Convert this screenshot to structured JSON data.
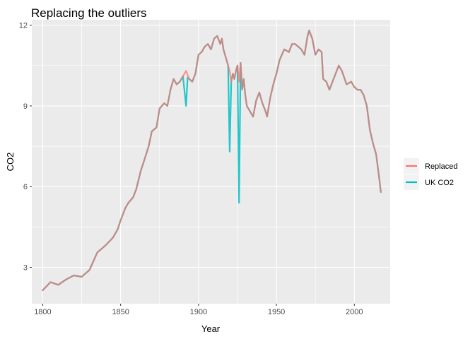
{
  "chart_data": {
    "type": "line",
    "title": "Replacing the outliers",
    "xlabel": "Year",
    "ylabel": "CO2",
    "xlim": [
      1793,
      2023
    ],
    "ylim": [
      1.65,
      12.2
    ],
    "x_ticks": [
      1800,
      1850,
      1900,
      1950,
      2000
    ],
    "y_ticks": [
      3,
      6,
      9,
      12
    ],
    "x_tick_labels": [
      "1800",
      "1850",
      "1900",
      "1950",
      "2000"
    ],
    "y_tick_labels": [
      "3",
      "6",
      "9",
      "12"
    ],
    "grid": true,
    "legend": {
      "position": "right",
      "entries": [
        "Replaced",
        "UK CO2"
      ]
    },
    "colors": {
      "Replaced": "#F8766D",
      "UK CO2": "#00BFC4",
      "panel": "#EBEBEB",
      "grid": "#FFFFFF"
    },
    "series": [
      {
        "name": "Replaced",
        "x": [
          1800,
          1805,
          1810,
          1815,
          1820,
          1825,
          1828,
          1830,
          1835,
          1840,
          1845,
          1848,
          1850,
          1853,
          1855,
          1858,
          1860,
          1863,
          1865,
          1868,
          1870,
          1873,
          1875,
          1878,
          1880,
          1882,
          1884,
          1886,
          1888,
          1890,
          1892,
          1894,
          1896,
          1898,
          1900,
          1902,
          1904,
          1906,
          1908,
          1910,
          1912,
          1914,
          1915,
          1916,
          1917,
          1918,
          1919,
          1920,
          1921,
          1922,
          1923,
          1924,
          1925,
          1926,
          1927,
          1928,
          1929,
          1930,
          1931,
          1933,
          1935,
          1937,
          1939,
          1941,
          1943,
          1944,
          1946,
          1948,
          1950,
          1952,
          1955,
          1958,
          1960,
          1962,
          1964,
          1966,
          1968,
          1970,
          1971,
          1973,
          1975,
          1977,
          1979,
          1980,
          1982,
          1984,
          1986,
          1988,
          1990,
          1992,
          1995,
          1998,
          2000,
          2002,
          2004,
          2006,
          2008,
          2010,
          2012,
          2014,
          2016,
          2017
        ],
        "y": [
          2.15,
          2.45,
          2.35,
          2.55,
          2.7,
          2.65,
          2.8,
          2.9,
          3.55,
          3.8,
          4.1,
          4.4,
          4.75,
          5.2,
          5.4,
          5.6,
          5.9,
          6.6,
          6.95,
          7.5,
          8.05,
          8.2,
          8.9,
          9.1,
          9.0,
          9.6,
          10.0,
          9.8,
          9.9,
          10.1,
          10.3,
          10.0,
          9.9,
          10.2,
          10.9,
          11.0,
          11.2,
          11.3,
          11.1,
          11.5,
          11.6,
          11.3,
          11.5,
          11.1,
          10.9,
          10.7,
          10.5,
          10.3,
          9.9,
          10.2,
          10.0,
          10.3,
          10.5,
          9.9,
          10.6,
          9.6,
          10.0,
          9.4,
          9.0,
          8.8,
          8.6,
          9.2,
          9.5,
          9.1,
          8.8,
          8.6,
          9.3,
          9.8,
          10.2,
          10.7,
          11.1,
          11.0,
          11.3,
          11.3,
          11.2,
          11.1,
          10.9,
          11.6,
          11.8,
          11.5,
          10.9,
          11.1,
          11.0,
          10.0,
          9.9,
          9.6,
          9.9,
          10.2,
          10.5,
          10.3,
          9.8,
          9.9,
          9.7,
          9.6,
          9.6,
          9.4,
          9.0,
          8.1,
          7.6,
          7.2,
          6.3,
          5.8
        ]
      },
      {
        "name": "UK CO2",
        "x": [
          1800,
          1805,
          1810,
          1815,
          1820,
          1825,
          1828,
          1830,
          1835,
          1840,
          1845,
          1848,
          1850,
          1853,
          1855,
          1858,
          1860,
          1863,
          1865,
          1868,
          1870,
          1873,
          1875,
          1878,
          1880,
          1882,
          1884,
          1886,
          1888,
          1890,
          1892,
          1893,
          1894,
          1896,
          1898,
          1900,
          1902,
          1904,
          1906,
          1908,
          1910,
          1912,
          1914,
          1915,
          1916,
          1917,
          1918,
          1919,
          1920,
          1921,
          1922,
          1923,
          1924,
          1925,
          1926,
          1927,
          1928,
          1929,
          1930,
          1931,
          1933,
          1935,
          1937,
          1939,
          1941,
          1943,
          1944,
          1946,
          1948,
          1950,
          1952,
          1955,
          1958,
          1960,
          1962,
          1964,
          1966,
          1968,
          1970,
          1971,
          1973,
          1975,
          1977,
          1979,
          1980,
          1982,
          1984,
          1986,
          1988,
          1990,
          1992,
          1995,
          1998,
          2000,
          2002,
          2004,
          2006,
          2008,
          2010,
          2012,
          2014,
          2016,
          2017
        ],
        "y": [
          2.15,
          2.45,
          2.35,
          2.55,
          2.7,
          2.65,
          2.8,
          2.9,
          3.55,
          3.8,
          4.1,
          4.4,
          4.75,
          5.2,
          5.4,
          5.6,
          5.9,
          6.6,
          6.95,
          7.5,
          8.05,
          8.2,
          8.9,
          9.1,
          9.0,
          9.6,
          10.0,
          9.8,
          9.9,
          10.1,
          9.0,
          10.05,
          10.0,
          9.9,
          10.2,
          10.9,
          11.0,
          11.2,
          11.3,
          11.1,
          11.5,
          11.6,
          11.3,
          11.5,
          11.1,
          10.9,
          10.7,
          10.5,
          7.3,
          9.9,
          10.2,
          10.0,
          10.3,
          10.5,
          5.4,
          10.6,
          9.6,
          10.0,
          9.4,
          9.0,
          8.8,
          8.6,
          9.2,
          9.5,
          9.1,
          8.8,
          8.6,
          9.3,
          9.8,
          10.2,
          10.7,
          11.1,
          11.0,
          11.3,
          11.3,
          11.2,
          11.1,
          10.9,
          11.6,
          11.8,
          11.5,
          10.9,
          11.1,
          11.0,
          10.0,
          9.9,
          9.6,
          9.9,
          10.2,
          10.5,
          10.3,
          9.8,
          9.9,
          9.7,
          9.6,
          9.6,
          9.4,
          9.0,
          8.1,
          7.6,
          7.2,
          6.3,
          5.8
        ]
      }
    ]
  }
}
